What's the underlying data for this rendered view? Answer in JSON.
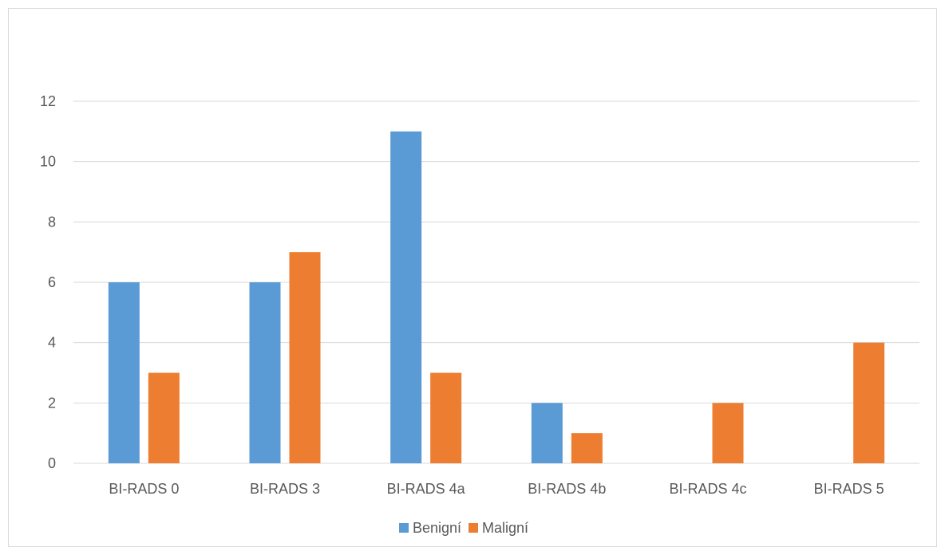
{
  "chart_data": {
    "type": "bar",
    "title": "",
    "xlabel": "",
    "ylabel": "",
    "categories": [
      "BI-RADS 0",
      "BI-RADS 3",
      "BI-RADS 4a",
      "BI-RADS 4b",
      "BI-RADS 4c",
      "BI-RADS 5"
    ],
    "series": [
      {
        "name": "Benigní",
        "color": "#5b9bd5",
        "values": [
          6,
          6,
          11,
          2,
          0,
          0
        ]
      },
      {
        "name": "Maligní",
        "color": "#ed7d31",
        "values": [
          3,
          7,
          3,
          1,
          2,
          4
        ]
      }
    ],
    "ylim": [
      0,
      12
    ],
    "yticks": [
      0,
      2,
      4,
      6,
      8,
      10,
      12
    ],
    "grid": true,
    "legend_position": "bottom",
    "colors": {
      "gridline": "#d9d9d9",
      "axis_text": "#595959"
    }
  }
}
